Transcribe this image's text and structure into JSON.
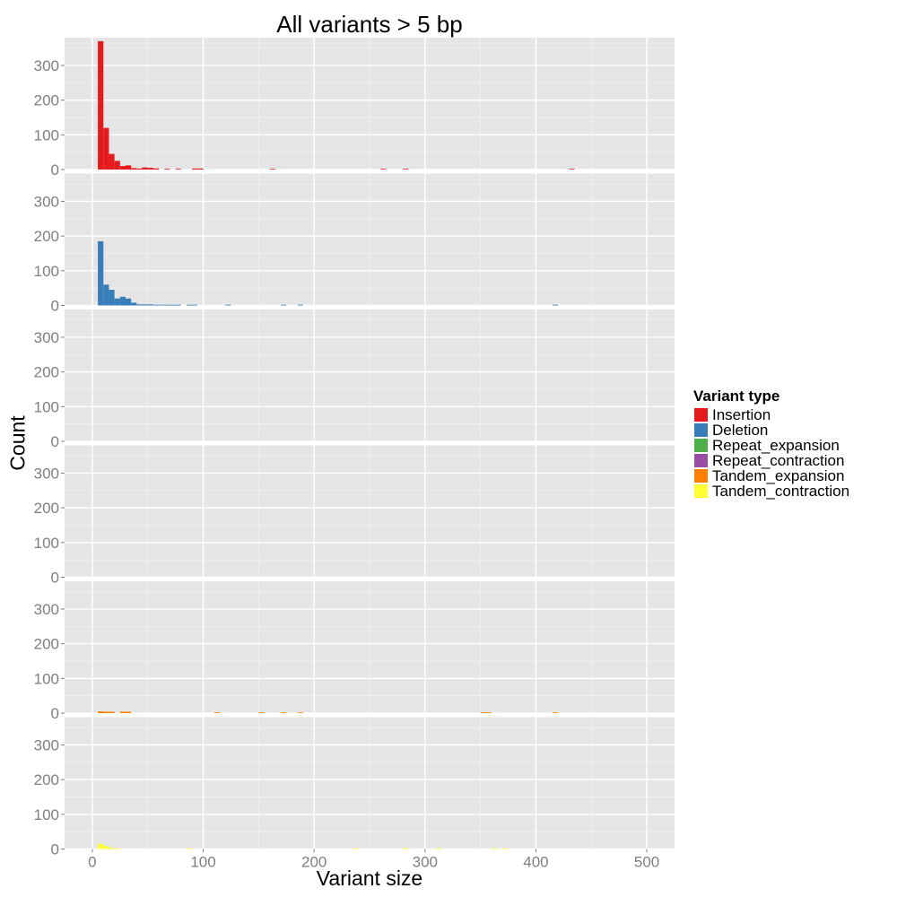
{
  "chart_data": {
    "type": "bar",
    "title": "All variants > 5 bp",
    "xlabel": "Variant size",
    "ylabel": "Count",
    "xlim": [
      -25,
      525
    ],
    "ylim": [
      0,
      380
    ],
    "x_ticks": [
      0,
      100,
      200,
      300,
      400,
      500
    ],
    "y_ticks": [
      0,
      100,
      200,
      300
    ],
    "bin_width": 5,
    "legend_title": "Variant type",
    "legend_position": "right",
    "grid": true,
    "series": [
      {
        "name": "Insertion",
        "color": "#E41A1C",
        "bins": [
          [
            5,
            370
          ],
          [
            10,
            120
          ],
          [
            15,
            45
          ],
          [
            20,
            25
          ],
          [
            25,
            10
          ],
          [
            30,
            12
          ],
          [
            35,
            4
          ],
          [
            40,
            3
          ],
          [
            45,
            6
          ],
          [
            50,
            5
          ],
          [
            55,
            3
          ],
          [
            65,
            2
          ],
          [
            75,
            2
          ],
          [
            90,
            3
          ],
          [
            95,
            3
          ],
          [
            160,
            2
          ],
          [
            260,
            2
          ],
          [
            280,
            2
          ],
          [
            430,
            2
          ]
        ]
      },
      {
        "name": "Deletion",
        "color": "#377EB8",
        "bins": [
          [
            5,
            185
          ],
          [
            10,
            60
          ],
          [
            15,
            45
          ],
          [
            20,
            20
          ],
          [
            25,
            25
          ],
          [
            30,
            20
          ],
          [
            35,
            8
          ],
          [
            40,
            3
          ],
          [
            45,
            3
          ],
          [
            50,
            3
          ],
          [
            55,
            2
          ],
          [
            60,
            2
          ],
          [
            65,
            2
          ],
          [
            70,
            2
          ],
          [
            75,
            2
          ],
          [
            85,
            2
          ],
          [
            90,
            2
          ],
          [
            120,
            2
          ],
          [
            170,
            2
          ],
          [
            185,
            2
          ],
          [
            415,
            2
          ]
        ]
      },
      {
        "name": "Repeat_expansion",
        "color": "#4DAF4A",
        "bins": []
      },
      {
        "name": "Repeat_contraction",
        "color": "#984EA3",
        "bins": []
      },
      {
        "name": "Tandem_expansion",
        "color": "#FF7F00",
        "bins": [
          [
            5,
            5
          ],
          [
            10,
            4
          ],
          [
            15,
            4
          ],
          [
            25,
            4
          ],
          [
            30,
            4
          ],
          [
            110,
            2
          ],
          [
            150,
            2
          ],
          [
            170,
            2
          ],
          [
            185,
            2
          ],
          [
            350,
            2
          ],
          [
            355,
            2
          ],
          [
            415,
            2
          ]
        ]
      },
      {
        "name": "Tandem_contraction",
        "color": "#FFFF33",
        "bins": [
          [
            5,
            15
          ],
          [
            10,
            8
          ],
          [
            15,
            3
          ],
          [
            20,
            2
          ],
          [
            85,
            2
          ],
          [
            235,
            2
          ],
          [
            280,
            2
          ],
          [
            310,
            2
          ],
          [
            360,
            2
          ],
          [
            370,
            2
          ]
        ]
      }
    ]
  }
}
